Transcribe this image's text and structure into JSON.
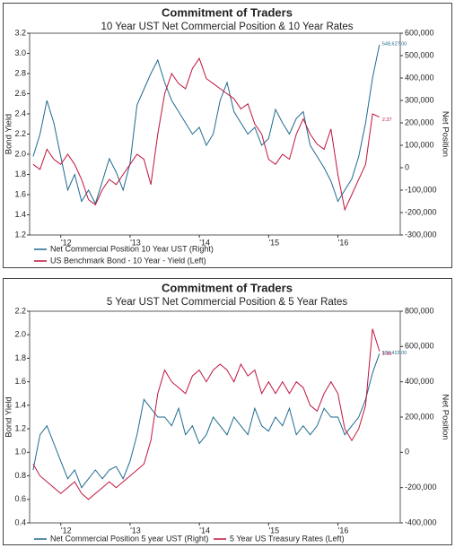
{
  "chart_data": [
    {
      "type": "line",
      "title": "Commitment of Traders",
      "subtitle": "10 Year UST Net Commercial Position & 10 Year Rates",
      "y_label": "Bond Yield",
      "y2_label": "Net Position",
      "legend_layout": "column",
      "grid": false,
      "x": [
        2011.6,
        2011.7,
        2011.8,
        2011.9,
        2012,
        2012.1,
        2012.2,
        2012.3,
        2012.4,
        2012.5,
        2012.6,
        2012.7,
        2012.8,
        2012.9,
        2013,
        2013.1,
        2013.2,
        2013.3,
        2013.4,
        2013.5,
        2013.6,
        2013.7,
        2013.8,
        2013.9,
        2014,
        2014.1,
        2014.2,
        2014.3,
        2014.4,
        2014.5,
        2014.6,
        2014.7,
        2014.8,
        2014.9,
        2015,
        2015.1,
        2015.2,
        2015.3,
        2015.4,
        2015.5,
        2015.6,
        2015.7,
        2015.8,
        2015.9,
        2016,
        2016.1,
        2016.2,
        2016.3,
        2016.4,
        2016.5,
        2016.6
      ],
      "xlim": [
        2011.55,
        2016.9
      ],
      "xticks": [
        {
          "value": 2012,
          "label": "'12"
        },
        {
          "value": 2013,
          "label": "'13"
        },
        {
          "value": 2014,
          "label": "'14"
        },
        {
          "value": 2015,
          "label": "'15"
        },
        {
          "value": 2016,
          "label": "'16"
        }
      ],
      "ylim": [
        1.2,
        3.2
      ],
      "yticks": [
        1.2,
        1.4,
        1.6,
        1.8,
        {
          "value": 2,
          "label": "2.0"
        },
        2.2,
        2.4,
        2.6,
        2.8,
        {
          "value": 3,
          "label": "3.0"
        },
        3.2
      ],
      "y2lim": [
        -300000,
        600000
      ],
      "y2ticks": [
        {
          "value": -300000,
          "label": "-300,000"
        },
        {
          "value": -200000,
          "label": "-200,000"
        },
        {
          "value": -100000,
          "label": "-100,000"
        },
        0,
        {
          "value": 100000,
          "label": "100,000"
        },
        {
          "value": 200000,
          "label": "200,000"
        },
        {
          "value": 300000,
          "label": "300,000"
        },
        {
          "value": 400000,
          "label": "400,000"
        },
        {
          "value": 500000,
          "label": "500,000"
        },
        {
          "value": 600000,
          "label": "600,000"
        }
      ],
      "series": [
        {
          "name": "Net Commercial Position 10 Year UST (Right)",
          "color": "#1f6a8f",
          "axis": "y2",
          "end_label": "548,627.00",
          "values": [
            50000,
            150000,
            300000,
            200000,
            50000,
            -100000,
            -30000,
            -150000,
            -100000,
            -160000,
            -60000,
            40000,
            -20000,
            -100000,
            20000,
            280000,
            350000,
            420000,
            480000,
            380000,
            300000,
            250000,
            200000,
            150000,
            180000,
            100000,
            150000,
            300000,
            380000,
            250000,
            200000,
            150000,
            180000,
            100000,
            130000,
            260000,
            200000,
            150000,
            220000,
            250000,
            100000,
            50000,
            0,
            -60000,
            -150000,
            -100000,
            -50000,
            50000,
            200000,
            400000,
            548627
          ]
        },
        {
          "name": "US Benchmark Bond - 10 Year - Yield  (Left)",
          "color": "#c0143c",
          "axis": "y",
          "end_label": "2.37",
          "values": [
            1.9,
            1.85,
            2.05,
            1.95,
            1.9,
            2.0,
            1.9,
            1.75,
            1.55,
            1.5,
            1.65,
            1.75,
            1.7,
            1.8,
            1.9,
            2.0,
            1.95,
            1.7,
            2.2,
            2.6,
            2.8,
            2.7,
            2.65,
            2.85,
            2.95,
            2.75,
            2.7,
            2.65,
            2.6,
            2.55,
            2.45,
            2.5,
            2.3,
            2.2,
            1.95,
            1.9,
            2.0,
            1.95,
            2.2,
            2.35,
            2.2,
            2.1,
            2.05,
            2.25,
            1.8,
            1.45,
            1.6,
            1.75,
            1.9,
            2.4,
            2.37
          ]
        }
      ]
    },
    {
      "type": "line",
      "title": "Commitment of Traders",
      "subtitle": "5 Year UST Net Commercial Position & 5 Year Rates",
      "y_label": "Bond Yield",
      "y2_label": "Net Position",
      "legend_layout": "row",
      "grid": false,
      "x": [
        2011.6,
        2011.7,
        2011.8,
        2011.9,
        2012,
        2012.1,
        2012.2,
        2012.3,
        2012.4,
        2012.5,
        2012.6,
        2012.7,
        2012.8,
        2012.9,
        2013,
        2013.1,
        2013.2,
        2013.3,
        2013.4,
        2013.5,
        2013.6,
        2013.7,
        2013.8,
        2013.9,
        2014,
        2014.1,
        2014.2,
        2014.3,
        2014.4,
        2014.5,
        2014.6,
        2014.7,
        2014.8,
        2014.9,
        2015,
        2015.1,
        2015.2,
        2015.3,
        2015.4,
        2015.5,
        2015.6,
        2015.7,
        2015.8,
        2015.9,
        2016,
        2016.1,
        2016.2,
        2016.3,
        2016.4,
        2016.5,
        2016.6
      ],
      "xlim": [
        2011.55,
        2016.9
      ],
      "xticks": [
        {
          "value": 2012,
          "label": "'12"
        },
        {
          "value": 2013,
          "label": "'13"
        },
        {
          "value": 2014,
          "label": "'14"
        },
        {
          "value": 2015,
          "label": "'15"
        },
        {
          "value": 2016,
          "label": "'16"
        }
      ],
      "ylim": [
        0.4,
        2.2
      ],
      "yticks": [
        0.4,
        0.6,
        0.8,
        {
          "value": 1,
          "label": "1.0"
        },
        1.2,
        1.4,
        1.6,
        1.8,
        {
          "value": 2,
          "label": "2.0"
        },
        2.2
      ],
      "y2lim": [
        -400000,
        800000
      ],
      "y2ticks": [
        {
          "value": -400000,
          "label": "-400,000"
        },
        {
          "value": -200000,
          "label": "-200,000"
        },
        0,
        {
          "value": 200000,
          "label": "200,000"
        },
        {
          "value": 400000,
          "label": "400,000"
        },
        {
          "value": 600000,
          "label": "600,000"
        },
        {
          "value": 800000,
          "label": "800,000"
        }
      ],
      "series": [
        {
          "name": "Net Commercial Position 5 year UST (Right)",
          "color": "#1f6a8f",
          "axis": "y2",
          "end_label": "559,422.00",
          "values": [
            -100000,
            100000,
            150000,
            50000,
            -50000,
            -150000,
            -100000,
            -200000,
            -150000,
            -100000,
            -150000,
            -100000,
            -80000,
            -150000,
            -50000,
            100000,
            300000,
            250000,
            200000,
            200000,
            150000,
            250000,
            100000,
            150000,
            50000,
            100000,
            200000,
            150000,
            100000,
            200000,
            150000,
            100000,
            250000,
            150000,
            120000,
            200000,
            150000,
            250000,
            100000,
            150000,
            100000,
            150000,
            250000,
            200000,
            200000,
            100000,
            150000,
            200000,
            300000,
            450000,
            559422
          ]
        },
        {
          "name": "5 Year US Treasury Rates (Left)",
          "color": "#c0143c",
          "axis": "y",
          "end_label": "1.86",
          "values": [
            0.9,
            0.8,
            0.75,
            0.7,
            0.65,
            0.7,
            0.75,
            0.65,
            0.6,
            0.65,
            0.7,
            0.75,
            0.7,
            0.75,
            0.8,
            0.85,
            0.9,
            1.1,
            1.5,
            1.7,
            1.6,
            1.55,
            1.5,
            1.65,
            1.7,
            1.6,
            1.7,
            1.75,
            1.7,
            1.6,
            1.75,
            1.65,
            1.7,
            1.5,
            1.6,
            1.5,
            1.6,
            1.5,
            1.6,
            1.55,
            1.4,
            1.35,
            1.5,
            1.6,
            1.5,
            1.2,
            1.1,
            1.2,
            1.4,
            2.05,
            1.86
          ]
        }
      ]
    }
  ]
}
